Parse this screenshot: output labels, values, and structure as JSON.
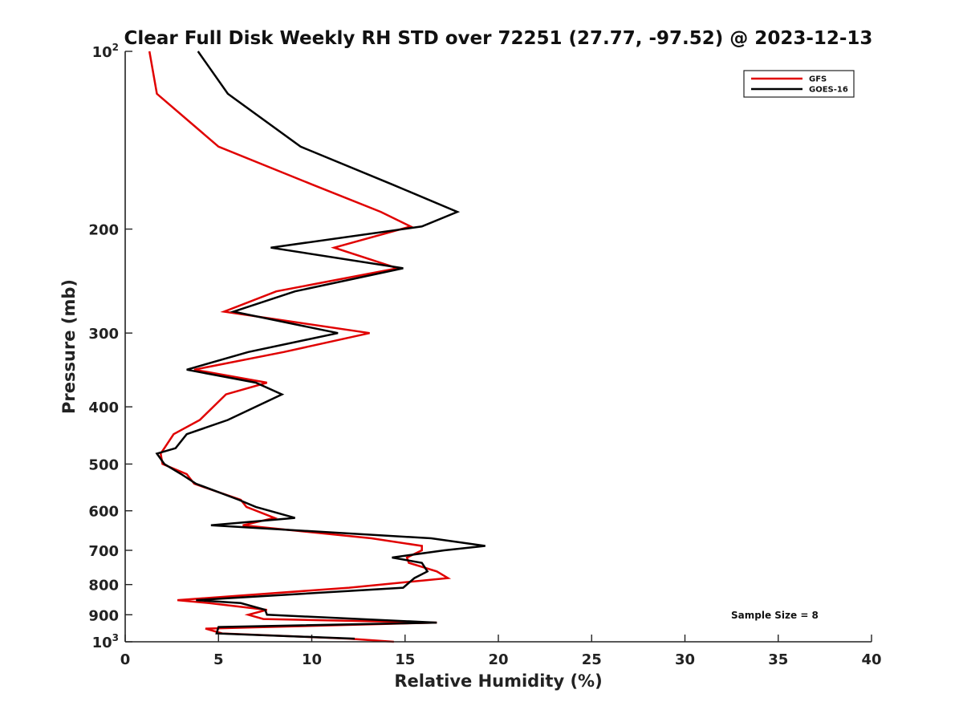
{
  "chart_data": {
    "type": "line",
    "title": "Clear Full Disk Weekly RH STD over 72251 (27.77, -97.52) @ 2023-12-13",
    "xlabel": "Relative Humidity (%)",
    "ylabel": "Pressure (mb)",
    "xlim": [
      0,
      40
    ],
    "ylim": [
      100,
      1000
    ],
    "y_scale": "log",
    "y_reversed": true,
    "x_ticks": [
      "0",
      "5",
      "10",
      "15",
      "20",
      "25",
      "30",
      "35",
      "40"
    ],
    "y_ticks": [
      {
        "value": 100,
        "base": "10",
        "exp": "2"
      },
      {
        "value": 200,
        "base": "200",
        "exp": ""
      },
      {
        "value": 300,
        "base": "300",
        "exp": ""
      },
      {
        "value": 400,
        "base": "400",
        "exp": ""
      },
      {
        "value": 500,
        "base": "500",
        "exp": ""
      },
      {
        "value": 600,
        "base": "600",
        "exp": ""
      },
      {
        "value": 700,
        "base": "700",
        "exp": ""
      },
      {
        "value": 800,
        "base": "800",
        "exp": ""
      },
      {
        "value": 900,
        "base": "900",
        "exp": ""
      },
      {
        "value": 1000,
        "base": "10",
        "exp": "3"
      }
    ],
    "grid": false,
    "legend_position": "top-right",
    "annotation": "Sample Size = 8",
    "series": [
      {
        "name": "GFS",
        "color": "#e00000",
        "points": [
          [
            1.3,
            100
          ],
          [
            1.7,
            118
          ],
          [
            5.0,
            145
          ],
          [
            10.0,
            168
          ],
          [
            13.7,
            187
          ],
          [
            15.3,
            198
          ],
          [
            11.2,
            215
          ],
          [
            14.6,
            233
          ],
          [
            8.1,
            255
          ],
          [
            5.3,
            276
          ],
          [
            13.1,
            300
          ],
          [
            8.5,
            323
          ],
          [
            3.7,
            346
          ],
          [
            7.6,
            364
          ],
          [
            5.4,
            381
          ],
          [
            4.0,
            421
          ],
          [
            2.6,
            445
          ],
          [
            2.1,
            470
          ],
          [
            1.9,
            480
          ],
          [
            2.0,
            500
          ],
          [
            3.3,
            520
          ],
          [
            3.7,
            540
          ],
          [
            6.2,
            575
          ],
          [
            6.5,
            591
          ],
          [
            8.0,
            617
          ],
          [
            6.3,
            635
          ],
          [
            13.2,
            668
          ],
          [
            15.9,
            688
          ],
          [
            15.9,
            700
          ],
          [
            15.1,
            720
          ],
          [
            15.2,
            735
          ],
          [
            16.7,
            760
          ],
          [
            17.3,
            780
          ],
          [
            12.0,
            810
          ],
          [
            2.8,
            850
          ],
          [
            4.5,
            860
          ],
          [
            7.6,
            883
          ],
          [
            6.6,
            900
          ],
          [
            7.4,
            915
          ],
          [
            16.7,
            928
          ],
          [
            7.6,
            944
          ],
          [
            4.3,
            950
          ],
          [
            5.2,
            968
          ],
          [
            12.0,
            988
          ],
          [
            14.4,
            1000
          ]
        ]
      },
      {
        "name": "GOES-16",
        "color": "#000000",
        "points": [
          [
            3.9,
            100
          ],
          [
            5.5,
            118
          ],
          [
            9.4,
            145
          ],
          [
            14.3,
            168
          ],
          [
            17.8,
            187
          ],
          [
            15.9,
            198
          ],
          [
            7.8,
            215
          ],
          [
            14.9,
            233
          ],
          [
            9.1,
            255
          ],
          [
            5.8,
            276
          ],
          [
            11.4,
            300
          ],
          [
            6.6,
            323
          ],
          [
            3.3,
            346
          ],
          [
            7.0,
            364
          ],
          [
            8.4,
            381
          ],
          [
            5.5,
            421
          ],
          [
            3.3,
            445
          ],
          [
            2.7,
            470
          ],
          [
            1.7,
            480
          ],
          [
            2.1,
            500
          ],
          [
            3.0,
            520
          ],
          [
            3.8,
            540
          ],
          [
            6.1,
            575
          ],
          [
            7.0,
            591
          ],
          [
            9.1,
            617
          ],
          [
            4.6,
            635
          ],
          [
            16.4,
            668
          ],
          [
            19.3,
            688
          ],
          [
            17.1,
            700
          ],
          [
            14.3,
            720
          ],
          [
            15.9,
            735
          ],
          [
            16.2,
            760
          ],
          [
            15.5,
            780
          ],
          [
            14.9,
            810
          ],
          [
            3.8,
            850
          ],
          [
            6.2,
            860
          ],
          [
            7.5,
            883
          ],
          [
            7.6,
            900
          ],
          [
            16.7,
            928
          ],
          [
            5.0,
            944
          ],
          [
            4.9,
            968
          ],
          [
            12.3,
            988
          ]
        ]
      }
    ]
  }
}
